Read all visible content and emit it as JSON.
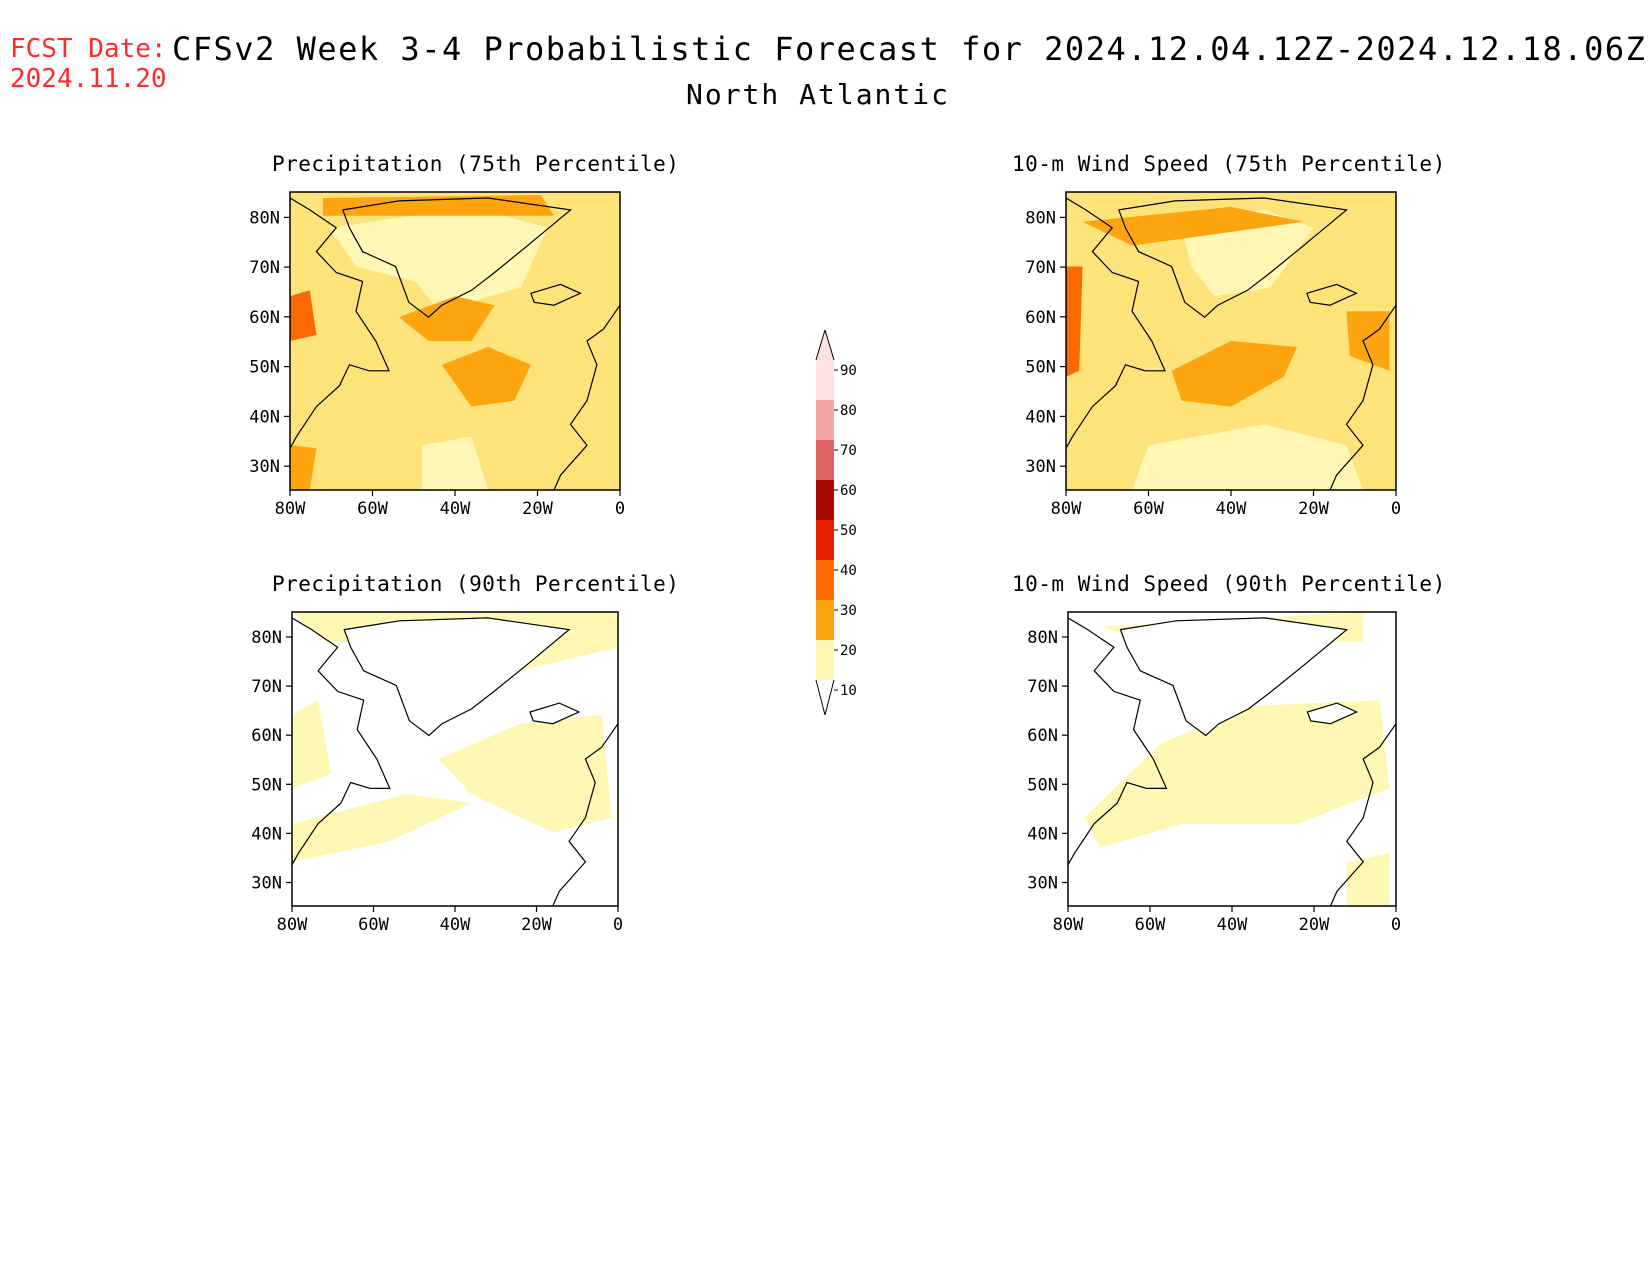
{
  "header": {
    "fcst_label": "FCST Date:",
    "fcst_date": "2024.11.20",
    "title": "CFSv2 Week 3-4 Probabilistic Forecast for 2024.12.04.12Z-2024.12.18.06Z",
    "region": "North Atlantic"
  },
  "panels": [
    {
      "title": "Precipitation (75th Percentile)"
    },
    {
      "title": "10-m Wind Speed (75th Percentile)"
    },
    {
      "title": "Precipitation (90th Percentile)"
    },
    {
      "title": "10-m Wind Speed (90th Percentile)"
    }
  ],
  "axes": {
    "lat_labels": [
      "80N",
      "70N",
      "60N",
      "50N",
      "40N",
      "30N"
    ],
    "lon_labels": [
      "80W",
      "60W",
      "40W",
      "20W",
      "0"
    ]
  },
  "colorbar": {
    "levels": [
      "10",
      "20",
      "30",
      "40",
      "50",
      "60",
      "70",
      "80",
      "90"
    ],
    "colors": [
      "#fff7b3",
      "#fde37a",
      "#fca50f",
      "#fb6a00",
      "#e81e00",
      "#a50a00",
      "#de6464",
      "#f3a5a5",
      "#ffe1e1"
    ]
  }
}
